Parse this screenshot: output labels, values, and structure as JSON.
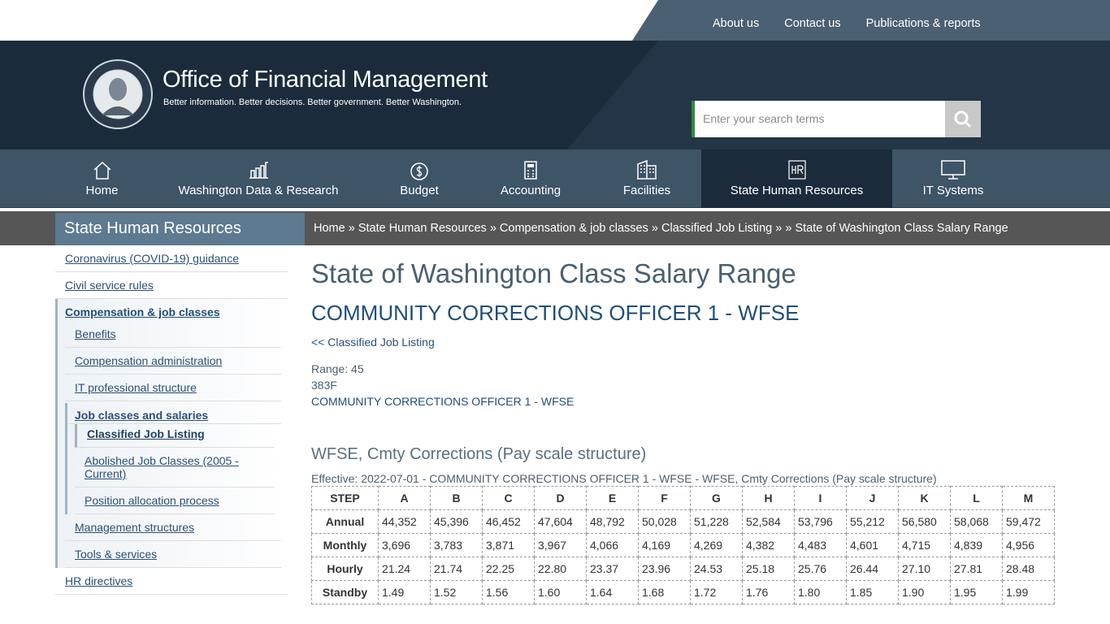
{
  "top_links": [
    "About us",
    "Contact us",
    "Publications & reports"
  ],
  "header": {
    "title": "Office of Financial Management",
    "tagline": "Better information. Better decisions. Better government. Better Washington.",
    "search_placeholder": "Enter your search terms"
  },
  "nav": [
    "Home",
    "Washington Data & Research",
    "Budget",
    "Accounting",
    "Facilities",
    "State Human Resources",
    "IT Systems"
  ],
  "sidebar": {
    "title": "State Human Resources",
    "items": [
      {
        "label": "Coronavirus (COVID-19) guidance"
      },
      {
        "label": "Civil service rules"
      },
      {
        "label": "Compensation & job classes",
        "children": [
          {
            "label": "Benefits"
          },
          {
            "label": "Compensation administration"
          },
          {
            "label": "IT professional structure"
          },
          {
            "label": "Job classes and salaries",
            "children": [
              {
                "label": "Classified Job Listing"
              },
              {
                "label": "Abolished Job Classes (2005 - Current)"
              },
              {
                "label": "Position allocation process"
              }
            ]
          },
          {
            "label": "Management structures"
          },
          {
            "label": "Tools & services"
          }
        ]
      },
      {
        "label": "HR directives"
      }
    ]
  },
  "breadcrumb": [
    "Home",
    "State Human Resources",
    "Compensation & job classes",
    "Classified Job Listing",
    "State of Washington Class Salary Range"
  ],
  "main": {
    "title": "State of Washington Class Salary Range",
    "subtitle": "COMMUNITY CORRECTIONS OFFICER 1 - WFSE",
    "back_link": "<< Classified Job Listing",
    "info": [
      "Range: 45",
      "383F",
      "COMMUNITY CORRECTIONS OFFICER 1 - WFSE"
    ],
    "section_title": "WFSE, Cmty Corrections (Pay scale structure)",
    "effective": "Effective: 2022-07-01 - COMMUNITY CORRECTIONS OFFICER 1 - WFSE - WFSE, Cmty Corrections (Pay scale structure)",
    "table": {
      "header": [
        "STEP",
        "A",
        "B",
        "C",
        "D",
        "E",
        "F",
        "G",
        "H",
        "I",
        "J",
        "K",
        "L",
        "M"
      ],
      "rows": [
        [
          "Annual",
          "44,352",
          "45,396",
          "46,452",
          "47,604",
          "48,792",
          "50,028",
          "51,228",
          "52,584",
          "53,796",
          "55,212",
          "56,580",
          "58,068",
          "59,472"
        ],
        [
          "Monthly",
          "3,696",
          "3,783",
          "3,871",
          "3,967",
          "4,066",
          "4,169",
          "4,269",
          "4,382",
          "4,483",
          "4,601",
          "4,715",
          "4,839",
          "4,956"
        ],
        [
          "Hourly",
          "21.24",
          "21.74",
          "22.25",
          "22.80",
          "23.37",
          "23.96",
          "24.53",
          "25.18",
          "25.76",
          "26.44",
          "27.10",
          "27.81",
          "28.48"
        ],
        [
          "Standby",
          "1.49",
          "1.52",
          "1.56",
          "1.60",
          "1.64",
          "1.68",
          "1.72",
          "1.76",
          "1.80",
          "1.85",
          "1.90",
          "1.95",
          "1.99"
        ]
      ]
    }
  }
}
